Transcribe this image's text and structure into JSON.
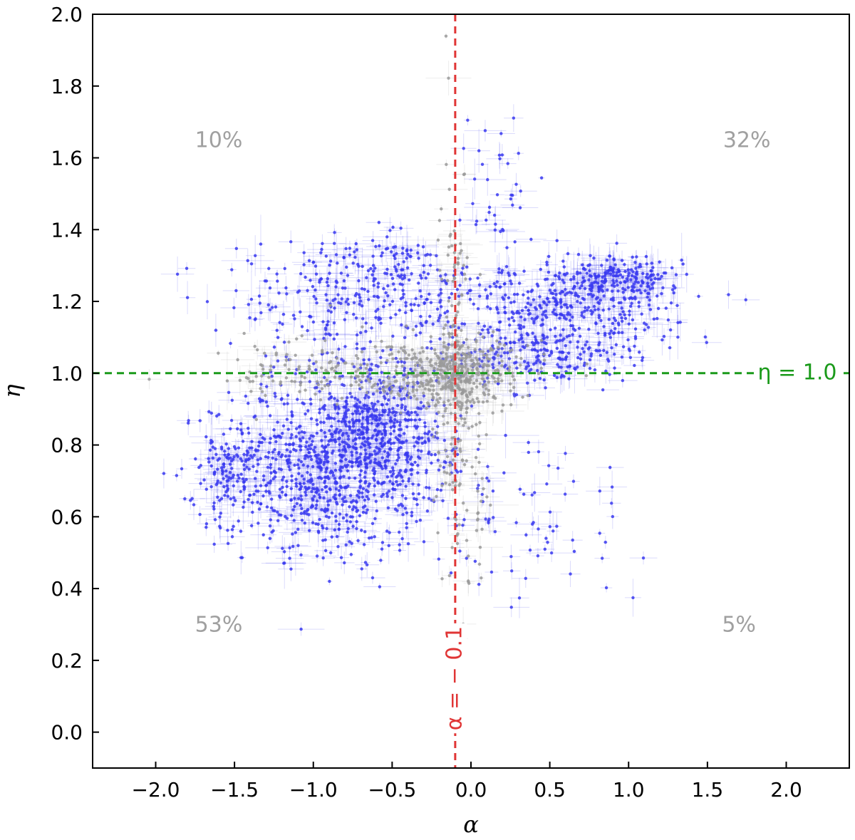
{
  "chart_data": {
    "type": "scatter",
    "xlabel": "α",
    "ylabel": "η",
    "xlim": [
      -2.4,
      2.4
    ],
    "ylim": [
      -0.1,
      2.0
    ],
    "x_ticks": [
      -2.0,
      -1.5,
      -1.0,
      -0.5,
      0.0,
      0.5,
      1.0,
      1.5,
      2.0
    ],
    "x_tick_labels": [
      "−2.0",
      "−1.5",
      "−1.0",
      "−0.5",
      "0.0",
      "0.5",
      "1.0",
      "1.5",
      "2.0"
    ],
    "y_ticks": [
      0.0,
      0.2,
      0.4,
      0.6,
      0.8,
      1.0,
      1.2,
      1.4,
      1.6,
      1.8,
      2.0
    ],
    "y_tick_labels": [
      "0.0",
      "0.2",
      "0.4",
      "0.6",
      "0.8",
      "1.0",
      "1.2",
      "1.4",
      "1.6",
      "1.8",
      "2.0"
    ],
    "grid": false,
    "colors": {
      "primary_series": "#3a3af0",
      "secondary_series": "#9a9a9a",
      "vline": "#e03535",
      "hline": "#1a9a1a",
      "quadrant_text": "#a0a0a0"
    },
    "reference_lines": {
      "vertical": {
        "x": -0.1,
        "label": "α = − 0.1"
      },
      "horizontal": {
        "y": 1.0,
        "label": "η = 1.0"
      }
    },
    "quadrant_labels": [
      {
        "text": "10%",
        "x": -1.6,
        "y": 1.63
      },
      {
        "text": "32%",
        "x": 1.75,
        "y": 1.63
      },
      {
        "text": "53%",
        "x": -1.6,
        "y": 0.28
      },
      {
        "text": "5%",
        "x": 1.7,
        "y": 0.28
      }
    ],
    "series": [
      {
        "color": "#3a3af0",
        "clusters": [
          {
            "x": -0.9,
            "y": 0.75,
            "sx": 0.35,
            "sy": 0.12,
            "n": 900
          },
          {
            "x": -0.55,
            "y": 0.85,
            "sx": 0.2,
            "sy": 0.1,
            "n": 350
          },
          {
            "x": -1.55,
            "y": 0.72,
            "sx": 0.12,
            "sy": 0.08,
            "n": 90
          },
          {
            "x": -0.8,
            "y": 1.2,
            "sx": 0.4,
            "sy": 0.08,
            "n": 260
          },
          {
            "x": -0.45,
            "y": 1.3,
            "sx": 0.15,
            "sy": 0.04,
            "n": 80
          },
          {
            "x": 0.6,
            "y": 1.18,
            "sx": 0.35,
            "sy": 0.07,
            "n": 420
          },
          {
            "x": 0.95,
            "y": 1.27,
            "sx": 0.18,
            "sy": 0.03,
            "n": 160
          },
          {
            "x": 0.4,
            "y": 1.05,
            "sx": 0.3,
            "sy": 0.04,
            "n": 180
          },
          {
            "x": 0.3,
            "y": 0.6,
            "sx": 0.4,
            "sy": 0.15,
            "n": 90
          },
          {
            "x": 0.2,
            "y": 1.5,
            "sx": 0.1,
            "sy": 0.15,
            "n": 40
          }
        ]
      },
      {
        "color": "#9a9a9a",
        "clusters": [
          {
            "x": -0.1,
            "y": 1.0,
            "sx": 0.2,
            "sy": 0.05,
            "n": 350
          },
          {
            "x": -0.7,
            "y": 1.0,
            "sx": 0.45,
            "sy": 0.05,
            "n": 200
          },
          {
            "x": -0.1,
            "y": 1.1,
            "sx": 0.05,
            "sy": 0.25,
            "n": 120
          },
          {
            "x": -0.05,
            "y": 0.65,
            "sx": 0.1,
            "sy": 0.15,
            "n": 70
          }
        ]
      }
    ]
  }
}
